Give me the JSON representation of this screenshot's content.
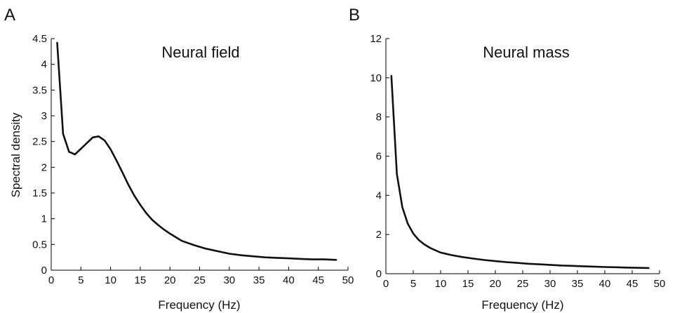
{
  "chart_data": [
    {
      "panel_label": "A",
      "type": "line",
      "title": "Neural field",
      "xlabel": "Frequency (Hz)",
      "ylabel": "Spectral density",
      "xlim": [
        0,
        50
      ],
      "ylim": [
        0,
        4.5
      ],
      "xticks": [
        0,
        5,
        10,
        15,
        20,
        25,
        30,
        35,
        40,
        45,
        50
      ],
      "xtick_labels": [
        "0",
        "5",
        "10",
        "15",
        "20",
        "25",
        "30",
        "35",
        "40",
        "45",
        "50"
      ],
      "yticks": [
        0,
        0.5,
        1,
        1.5,
        2,
        2.5,
        3,
        3.5,
        4,
        4.5
      ],
      "ytick_labels": [
        "0",
        "0.5",
        "1",
        "1.5",
        "2",
        "2.5",
        "3",
        "3.5",
        "4",
        "4.5"
      ],
      "grid": false,
      "series": [
        {
          "color": "#111111",
          "x": [
            1,
            2,
            3,
            4,
            5,
            6,
            7,
            8,
            9,
            10,
            11,
            12,
            13,
            14,
            15,
            16,
            17,
            18,
            19,
            20,
            22,
            24,
            26,
            28,
            30,
            32,
            34,
            36,
            38,
            40,
            42,
            44,
            46,
            48
          ],
          "y": [
            4.42,
            2.65,
            2.3,
            2.25,
            2.36,
            2.47,
            2.58,
            2.6,
            2.52,
            2.35,
            2.13,
            1.9,
            1.66,
            1.45,
            1.27,
            1.11,
            0.98,
            0.88,
            0.79,
            0.71,
            0.57,
            0.49,
            0.42,
            0.37,
            0.32,
            0.29,
            0.27,
            0.25,
            0.24,
            0.23,
            0.22,
            0.21,
            0.21,
            0.2
          ]
        }
      ]
    },
    {
      "panel_label": "B",
      "type": "line",
      "title": "Neural mass",
      "xlabel": "Frequency (Hz)",
      "ylabel": "",
      "xlim": [
        0,
        50
      ],
      "ylim": [
        0,
        12
      ],
      "xticks": [
        0,
        5,
        10,
        15,
        20,
        25,
        30,
        35,
        40,
        45,
        50
      ],
      "xtick_labels": [
        "0",
        "5",
        "10",
        "15",
        "20",
        "25",
        "30",
        "35",
        "40",
        "45",
        "50"
      ],
      "yticks": [
        0,
        2,
        4,
        6,
        8,
        10,
        12
      ],
      "ytick_labels": [
        "0",
        "2",
        "4",
        "6",
        "8",
        "10",
        "12"
      ],
      "grid": false,
      "series": [
        {
          "color": "#111111",
          "x": [
            1,
            2,
            3,
            4,
            5,
            6,
            7,
            8,
            9,
            10,
            12,
            14,
            16,
            18,
            20,
            22,
            24,
            26,
            28,
            30,
            32,
            34,
            36,
            38,
            40,
            42,
            44,
            46,
            48
          ],
          "y": [
            10.1,
            5.1,
            3.4,
            2.55,
            2.05,
            1.72,
            1.5,
            1.33,
            1.2,
            1.08,
            0.95,
            0.85,
            0.77,
            0.7,
            0.64,
            0.59,
            0.55,
            0.51,
            0.48,
            0.45,
            0.42,
            0.4,
            0.38,
            0.36,
            0.34,
            0.33,
            0.31,
            0.3,
            0.29
          ]
        }
      ]
    }
  ]
}
